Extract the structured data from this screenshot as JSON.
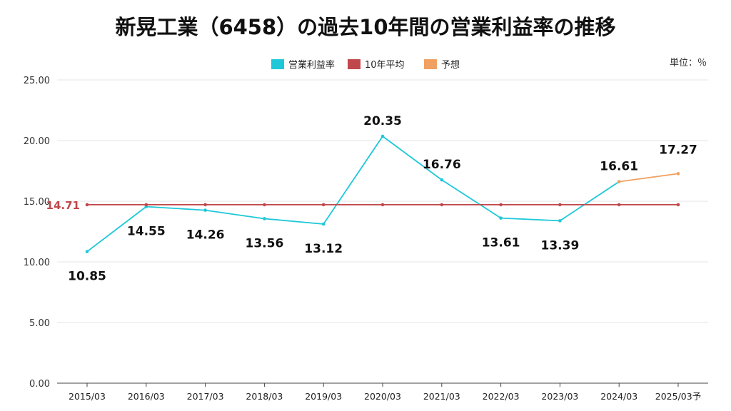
{
  "chart_data": {
    "type": "line",
    "title": "新晃工業（6458）の過去10年間の営業利益率の推移",
    "unit": "単位：％",
    "categories": [
      "2015/03",
      "2016/03",
      "2017/03",
      "2018/03",
      "2019/03",
      "2020/03",
      "2021/03",
      "2022/03",
      "2023/03",
      "2024/03",
      "2025/03予"
    ],
    "series": [
      {
        "name": "営業利益率",
        "color": "#1ec8d8",
        "values": [
          10.85,
          14.55,
          14.26,
          13.56,
          13.12,
          20.35,
          16.76,
          13.61,
          13.39,
          16.61,
          null
        ],
        "labels": [
          "10.85",
          "14.55",
          "14.26",
          "13.56",
          "13.12",
          "20.35",
          "16.76",
          "13.61",
          "13.39",
          "16.61",
          null
        ]
      },
      {
        "name": "10年平均",
        "color": "#c0474b",
        "values": [
          14.71,
          14.71,
          14.71,
          14.71,
          14.71,
          14.71,
          14.71,
          14.71,
          14.71,
          14.71,
          14.71
        ],
        "label": "14.71"
      },
      {
        "name": "予想",
        "color": "#f0a060",
        "values": [
          null,
          null,
          null,
          null,
          null,
          null,
          null,
          null,
          null,
          16.61,
          17.27
        ],
        "labels": [
          null,
          null,
          null,
          null,
          null,
          null,
          null,
          null,
          null,
          null,
          "17.27"
        ]
      }
    ],
    "y_ticks": [
      "0.00",
      "5.00",
      "10.00",
      "15.00",
      "20.00",
      "25.00"
    ],
    "ylim": [
      0,
      25
    ],
    "grid": true,
    "legend_position": "top-center"
  }
}
